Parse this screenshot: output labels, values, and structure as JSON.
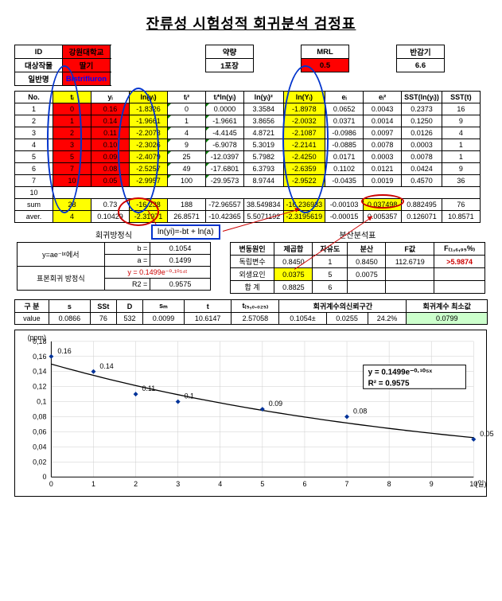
{
  "title": "잔류성 시험성적 회귀분석 검정표",
  "info": {
    "labels": {
      "id": "ID",
      "crop": "대상작물",
      "name": "일반명",
      "dose": "약량",
      "mrl": "MRL",
      "half": "반감기"
    },
    "id": "강원대학교",
    "crop": "딸기",
    "name": "Bistrifluron",
    "dose": "1포장",
    "mrl": "0.5",
    "half": "6.6"
  },
  "headers": [
    "No.",
    "tᵢ",
    "yᵢ",
    "ln(yᵢ)",
    "tᵢ²",
    "tᵢ*ln(yᵢ)",
    "ln(yᵢ)²",
    "ln(Yᵢ)",
    "eᵢ",
    "eᵢ²",
    "SST(ln(yᵢ))",
    "SST(t)"
  ],
  "rows": [
    [
      "1",
      "0",
      "0.16",
      "-1.8326",
      "0",
      "0.0000",
      "3.3584",
      "-1.8978",
      "0.0652",
      "0.0043",
      "0.2373",
      "16"
    ],
    [
      "2",
      "1",
      "0.14",
      "-1.9661",
      "1",
      "-1.9661",
      "3.8656",
      "-2.0032",
      "0.0371",
      "0.0014",
      "0.1250",
      "9"
    ],
    [
      "3",
      "2",
      "0.11",
      "-2.2073",
      "4",
      "-4.4145",
      "4.8721",
      "-2.1087",
      "-0.0986",
      "0.0097",
      "0.0126",
      "4"
    ],
    [
      "4",
      "3",
      "0.10",
      "-2.3026",
      "9",
      "-6.9078",
      "5.3019",
      "-2.2141",
      "-0.0885",
      "0.0078",
      "0.0003",
      "1"
    ],
    [
      "5",
      "5",
      "0.09",
      "-2.4079",
      "25",
      "-12.0397",
      "5.7982",
      "-2.4250",
      "0.0171",
      "0.0003",
      "0.0078",
      "1"
    ],
    [
      "6",
      "7",
      "0.08",
      "-2.5257",
      "49",
      "-17.6801",
      "6.3793",
      "-2.6359",
      "0.1102",
      "0.0121",
      "0.0424",
      "9"
    ],
    [
      "7",
      "10",
      "0.05",
      "-2.9957",
      "100",
      "-29.9573",
      "8.9744",
      "-2.9522",
      "-0.0435",
      "0.0019",
      "0.4570",
      "36"
    ]
  ],
  "row10": "10",
  "sum": [
    "sum",
    "28",
    "0.73",
    "-16.238",
    "188",
    "-72.96557",
    "38.549834",
    "-16.236933",
    "-0.00103",
    "0.037498",
    "0.882495",
    "76"
  ],
  "aver": [
    "aver.",
    "4",
    "0.10429",
    "-2.31971",
    "26.8571",
    "-10.42365",
    "5.5071192",
    "-2.3195619",
    "-0.00015",
    "0.005357",
    "0.126071",
    "10.8571"
  ],
  "eq_label": "ln(yi)=-bt + ln(a)",
  "reg": {
    "title": "회귀방정식",
    "model": "y=ae⁻ᵇᵗ에서",
    "b_label": "b =",
    "b": "0.1054",
    "a_label": "a =",
    "a": "0.1499",
    "line_label": "표본회귀\n방정식",
    "line": "y = 0.1499e⁻⁰·¹⁰⁵⁴ᵗ",
    "r2_label": "R2 =",
    "r2": "0.9575"
  },
  "anova": {
    "title": "분산분석표",
    "hdr": [
      "변동원인",
      "제곱합",
      "자유도",
      "분산",
      "F값",
      "F₍₁,₆,₉₅%₎"
    ],
    "r1": [
      "독립변수",
      "0.8450",
      "1",
      "0.8450",
      "112.6719",
      ">5.9874"
    ],
    "r2": [
      "외생요인",
      "0.0375",
      "5",
      "0.0075",
      "",
      ""
    ],
    "r3": [
      "합 계",
      "0.8825",
      "6",
      "",
      "",
      ""
    ]
  },
  "stats": {
    "hdr": [
      "구 분",
      "s",
      "SSt",
      "D",
      "sₘ",
      "t",
      "t₍₅,₀.₀₂₅₎",
      "회귀계수의신뢰구간",
      "",
      "",
      "회귀계수\n최소값"
    ],
    "row": [
      "value",
      "0.0866",
      "76",
      "532",
      "0.0099",
      "10.6147",
      "2.57058",
      "0.1054±",
      "0.0255",
      "24.2%",
      "0.0799"
    ]
  },
  "chart": {
    "ylabel": "(ppm)",
    "xlabel": "(일)",
    "yticks": [
      0,
      0.02,
      0.04,
      0.06,
      0.08,
      0.1,
      0.12,
      0.14,
      0.16,
      0.18
    ],
    "xticks": [
      0,
      1,
      2,
      3,
      4,
      5,
      6,
      7,
      8,
      9,
      10
    ],
    "points": [
      [
        0,
        0.16
      ],
      [
        1,
        0.14
      ],
      [
        2,
        0.11
      ],
      [
        3,
        0.1
      ],
      [
        5,
        0.09
      ],
      [
        7,
        0.08
      ],
      [
        10,
        0.05
      ]
    ],
    "labels": [
      "0.16",
      "0.14",
      "0.11",
      "0.1",
      "0.09",
      "0.08",
      "0.05"
    ],
    "eq1": "y = 0.1499e⁻⁰·¹⁰⁵ˣ",
    "eq2": "R²   = 0.9575",
    "colors": {
      "point": "#003399",
      "line": "#000",
      "grid": "#ccc"
    }
  }
}
